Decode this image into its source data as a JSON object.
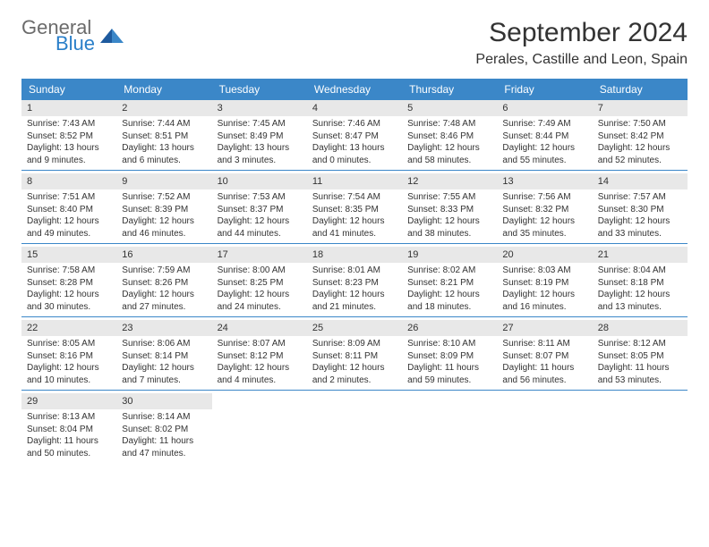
{
  "logo": {
    "general": "General",
    "blue": "Blue"
  },
  "title": "September 2024",
  "location": "Perales, Castille and Leon, Spain",
  "day_headers": [
    "Sunday",
    "Monday",
    "Tuesday",
    "Wednesday",
    "Thursday",
    "Friday",
    "Saturday"
  ],
  "header_bg": "#3b87c8",
  "header_text_color": "#ffffff",
  "daynum_bg": "#e8e8e8",
  "text_color": "#333333",
  "weeks": [
    [
      {
        "day": "1",
        "sunrise": "Sunrise: 7:43 AM",
        "sunset": "Sunset: 8:52 PM",
        "daylight": "Daylight: 13 hours and 9 minutes."
      },
      {
        "day": "2",
        "sunrise": "Sunrise: 7:44 AM",
        "sunset": "Sunset: 8:51 PM",
        "daylight": "Daylight: 13 hours and 6 minutes."
      },
      {
        "day": "3",
        "sunrise": "Sunrise: 7:45 AM",
        "sunset": "Sunset: 8:49 PM",
        "daylight": "Daylight: 13 hours and 3 minutes."
      },
      {
        "day": "4",
        "sunrise": "Sunrise: 7:46 AM",
        "sunset": "Sunset: 8:47 PM",
        "daylight": "Daylight: 13 hours and 0 minutes."
      },
      {
        "day": "5",
        "sunrise": "Sunrise: 7:48 AM",
        "sunset": "Sunset: 8:46 PM",
        "daylight": "Daylight: 12 hours and 58 minutes."
      },
      {
        "day": "6",
        "sunrise": "Sunrise: 7:49 AM",
        "sunset": "Sunset: 8:44 PM",
        "daylight": "Daylight: 12 hours and 55 minutes."
      },
      {
        "day": "7",
        "sunrise": "Sunrise: 7:50 AM",
        "sunset": "Sunset: 8:42 PM",
        "daylight": "Daylight: 12 hours and 52 minutes."
      }
    ],
    [
      {
        "day": "8",
        "sunrise": "Sunrise: 7:51 AM",
        "sunset": "Sunset: 8:40 PM",
        "daylight": "Daylight: 12 hours and 49 minutes."
      },
      {
        "day": "9",
        "sunrise": "Sunrise: 7:52 AM",
        "sunset": "Sunset: 8:39 PM",
        "daylight": "Daylight: 12 hours and 46 minutes."
      },
      {
        "day": "10",
        "sunrise": "Sunrise: 7:53 AM",
        "sunset": "Sunset: 8:37 PM",
        "daylight": "Daylight: 12 hours and 44 minutes."
      },
      {
        "day": "11",
        "sunrise": "Sunrise: 7:54 AM",
        "sunset": "Sunset: 8:35 PM",
        "daylight": "Daylight: 12 hours and 41 minutes."
      },
      {
        "day": "12",
        "sunrise": "Sunrise: 7:55 AM",
        "sunset": "Sunset: 8:33 PM",
        "daylight": "Daylight: 12 hours and 38 minutes."
      },
      {
        "day": "13",
        "sunrise": "Sunrise: 7:56 AM",
        "sunset": "Sunset: 8:32 PM",
        "daylight": "Daylight: 12 hours and 35 minutes."
      },
      {
        "day": "14",
        "sunrise": "Sunrise: 7:57 AM",
        "sunset": "Sunset: 8:30 PM",
        "daylight": "Daylight: 12 hours and 33 minutes."
      }
    ],
    [
      {
        "day": "15",
        "sunrise": "Sunrise: 7:58 AM",
        "sunset": "Sunset: 8:28 PM",
        "daylight": "Daylight: 12 hours and 30 minutes."
      },
      {
        "day": "16",
        "sunrise": "Sunrise: 7:59 AM",
        "sunset": "Sunset: 8:26 PM",
        "daylight": "Daylight: 12 hours and 27 minutes."
      },
      {
        "day": "17",
        "sunrise": "Sunrise: 8:00 AM",
        "sunset": "Sunset: 8:25 PM",
        "daylight": "Daylight: 12 hours and 24 minutes."
      },
      {
        "day": "18",
        "sunrise": "Sunrise: 8:01 AM",
        "sunset": "Sunset: 8:23 PM",
        "daylight": "Daylight: 12 hours and 21 minutes."
      },
      {
        "day": "19",
        "sunrise": "Sunrise: 8:02 AM",
        "sunset": "Sunset: 8:21 PM",
        "daylight": "Daylight: 12 hours and 18 minutes."
      },
      {
        "day": "20",
        "sunrise": "Sunrise: 8:03 AM",
        "sunset": "Sunset: 8:19 PM",
        "daylight": "Daylight: 12 hours and 16 minutes."
      },
      {
        "day": "21",
        "sunrise": "Sunrise: 8:04 AM",
        "sunset": "Sunset: 8:18 PM",
        "daylight": "Daylight: 12 hours and 13 minutes."
      }
    ],
    [
      {
        "day": "22",
        "sunrise": "Sunrise: 8:05 AM",
        "sunset": "Sunset: 8:16 PM",
        "daylight": "Daylight: 12 hours and 10 minutes."
      },
      {
        "day": "23",
        "sunrise": "Sunrise: 8:06 AM",
        "sunset": "Sunset: 8:14 PM",
        "daylight": "Daylight: 12 hours and 7 minutes."
      },
      {
        "day": "24",
        "sunrise": "Sunrise: 8:07 AM",
        "sunset": "Sunset: 8:12 PM",
        "daylight": "Daylight: 12 hours and 4 minutes."
      },
      {
        "day": "25",
        "sunrise": "Sunrise: 8:09 AM",
        "sunset": "Sunset: 8:11 PM",
        "daylight": "Daylight: 12 hours and 2 minutes."
      },
      {
        "day": "26",
        "sunrise": "Sunrise: 8:10 AM",
        "sunset": "Sunset: 8:09 PM",
        "daylight": "Daylight: 11 hours and 59 minutes."
      },
      {
        "day": "27",
        "sunrise": "Sunrise: 8:11 AM",
        "sunset": "Sunset: 8:07 PM",
        "daylight": "Daylight: 11 hours and 56 minutes."
      },
      {
        "day": "28",
        "sunrise": "Sunrise: 8:12 AM",
        "sunset": "Sunset: 8:05 PM",
        "daylight": "Daylight: 11 hours and 53 minutes."
      }
    ],
    [
      {
        "day": "29",
        "sunrise": "Sunrise: 8:13 AM",
        "sunset": "Sunset: 8:04 PM",
        "daylight": "Daylight: 11 hours and 50 minutes."
      },
      {
        "day": "30",
        "sunrise": "Sunrise: 8:14 AM",
        "sunset": "Sunset: 8:02 PM",
        "daylight": "Daylight: 11 hours and 47 minutes."
      },
      null,
      null,
      null,
      null,
      null
    ]
  ]
}
